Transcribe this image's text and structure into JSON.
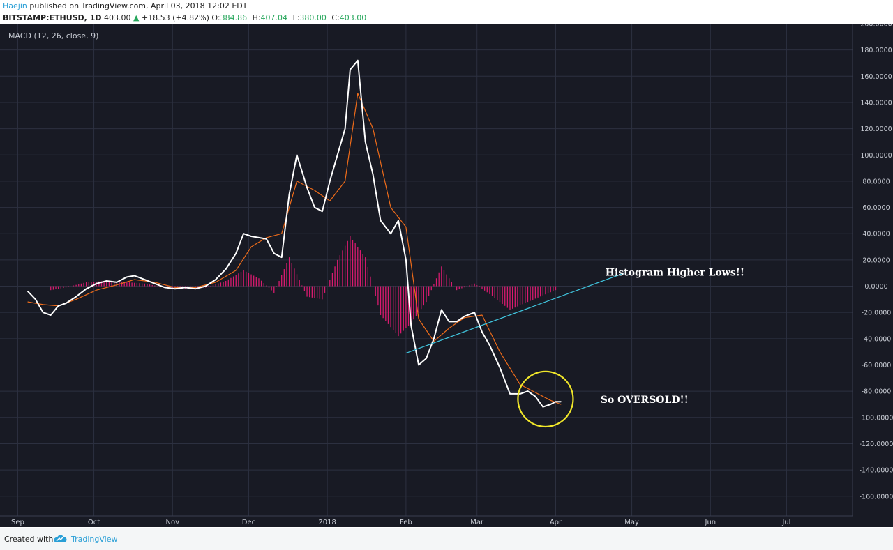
{
  "header": {
    "author": "Haejin",
    "published_text": "published on TradingView.com, April 03, 2018 12:02 EDT",
    "symbol": "BITSTAMP:ETHUSD, 1D",
    "last": "403.00",
    "change_arrow": "▲",
    "change": "+18.53 (+4.82%)",
    "ohlc": [
      {
        "label": "O:",
        "value": "384.86"
      },
      {
        "label": "H:",
        "value": "407.04"
      },
      {
        "label": "L:",
        "value": "380.00"
      },
      {
        "label": "C:",
        "value": "403.00"
      }
    ]
  },
  "footer": {
    "created_with": "Created with",
    "brand": "TradingView",
    "logo_icon": "tradingview-cloud-icon"
  },
  "colors": {
    "background": "#181a24",
    "grid": "#2c3040",
    "macd_line": "#ffffff",
    "signal_line": "#ef6c1a",
    "histogram": "#d81b6f",
    "trendline": "#40c4dd",
    "circle": "#f0e62a",
    "axis_text": "#c8ccd4"
  },
  "chart_data": {
    "type": "line",
    "title": "MACD (12, 26, close, 9)",
    "xlabel": "",
    "ylabel": "",
    "x_ticks": [
      "Sep",
      "Oct",
      "Nov",
      "Dec",
      "2018",
      "Feb",
      "Mar",
      "Apr",
      "May",
      "Jun",
      "Jul"
    ],
    "x_range": [
      "2017-08-25",
      "2018-07-27"
    ],
    "y_ticks": [
      "200.0000",
      "180.0000",
      "160.0000",
      "140.0000",
      "120.0000",
      "100.0000",
      "80.0000",
      "60.0000",
      "40.0000",
      "20.0000",
      "0.0000",
      "-20.0000",
      "-40.0000",
      "-60.0000",
      "-80.0000",
      "-100.0000",
      "-120.0000",
      "-140.0000",
      "-160.0000"
    ],
    "ylim": [
      -175,
      200
    ],
    "grid": true,
    "series": [
      {
        "name": "",
        "role": "macd",
        "x": [
          "2017-09-05",
          "2017-09-08",
          "2017-09-11",
          "2017-09-14",
          "2017-09-17",
          "2017-09-20",
          "2017-09-24",
          "2017-09-28",
          "2017-10-02",
          "2017-10-06",
          "2017-10-10",
          "2017-10-14",
          "2017-10-17",
          "2017-10-21",
          "2017-10-25",
          "2017-10-29",
          "2017-11-02",
          "2017-11-06",
          "2017-11-10",
          "2017-11-14",
          "2017-11-18",
          "2017-11-22",
          "2017-11-26",
          "2017-11-29",
          "2017-12-02",
          "2017-12-05",
          "2017-12-08",
          "2017-12-11",
          "2017-12-14",
          "2017-12-17",
          "2017-12-20",
          "2017-12-24",
          "2017-12-27",
          "2017-12-30",
          "2018-01-02",
          "2018-01-05",
          "2018-01-08",
          "2018-01-10",
          "2018-01-13",
          "2018-01-16",
          "2018-01-19",
          "2018-01-22",
          "2018-01-26",
          "2018-01-29",
          "2018-02-01",
          "2018-02-03",
          "2018-02-06",
          "2018-02-09",
          "2018-02-12",
          "2018-02-15",
          "2018-02-18",
          "2018-02-21",
          "2018-02-24",
          "2018-02-28",
          "2018-03-03",
          "2018-03-06",
          "2018-03-10",
          "2018-03-14",
          "2018-03-18",
          "2018-03-21",
          "2018-03-24",
          "2018-03-27",
          "2018-03-30",
          "2018-04-01",
          "2018-04-03"
        ],
        "values": [
          -4,
          -10,
          -20,
          -22,
          -15,
          -13,
          -8,
          -2,
          2,
          4,
          3,
          7,
          8,
          5,
          2,
          -1,
          -2,
          -1,
          -2,
          0,
          5,
          13,
          25,
          40,
          38,
          37,
          36,
          25,
          22,
          70,
          100,
          75,
          60,
          57,
          80,
          100,
          120,
          165,
          172,
          110,
          85,
          50,
          40,
          50,
          20,
          -30,
          -60,
          -55,
          -40,
          -18,
          -27,
          -27,
          -23,
          -20,
          -35,
          -45,
          -62,
          -82,
          -82,
          -80,
          -84,
          -92,
          -90,
          -88,
          -88
        ]
      },
      {
        "name": "",
        "role": "signal",
        "x": [
          "2017-09-05",
          "2017-09-11",
          "2017-09-17",
          "2017-09-24",
          "2017-10-02",
          "2017-10-10",
          "2017-10-17",
          "2017-10-25",
          "2017-11-02",
          "2017-11-10",
          "2017-11-18",
          "2017-11-26",
          "2017-12-02",
          "2017-12-08",
          "2017-12-14",
          "2017-12-20",
          "2017-12-27",
          "2018-01-02",
          "2018-01-08",
          "2018-01-13",
          "2018-01-19",
          "2018-01-26",
          "2018-02-01",
          "2018-02-06",
          "2018-02-12",
          "2018-02-18",
          "2018-02-24",
          "2018-03-03",
          "2018-03-10",
          "2018-03-18",
          "2018-03-24",
          "2018-03-30",
          "2018-04-03"
        ],
        "values": [
          -12,
          -14,
          -15,
          -10,
          -3,
          1,
          5,
          3,
          -1,
          -1,
          3,
          12,
          30,
          37,
          40,
          80,
          73,
          65,
          80,
          147,
          120,
          60,
          45,
          -25,
          -42,
          -32,
          -24,
          -22,
          -50,
          -75,
          -81,
          -87,
          -90
        ]
      },
      {
        "name": "",
        "role": "histogram",
        "x": [
          "2017-09-14",
          "2017-09-20",
          "2017-09-28",
          "2017-10-06",
          "2017-10-14",
          "2017-10-21",
          "2017-10-29",
          "2017-11-06",
          "2017-11-14",
          "2017-11-22",
          "2017-11-29",
          "2017-12-05",
          "2017-12-11",
          "2017-12-17",
          "2017-12-24",
          "2017-12-30",
          "2018-01-05",
          "2018-01-10",
          "2018-01-16",
          "2018-01-22",
          "2018-01-29",
          "2018-02-03",
          "2018-02-09",
          "2018-02-15",
          "2018-02-21",
          "2018-02-28",
          "2018-03-06",
          "2018-03-14",
          "2018-03-21",
          "2018-03-27",
          "2018-04-01"
        ],
        "values": [
          -3,
          -1,
          3,
          4,
          3,
          2,
          -1,
          -2,
          -1,
          4,
          12,
          6,
          -5,
          22,
          -8,
          -10,
          20,
          38,
          22,
          -22,
          -38,
          -28,
          -12,
          15,
          -3,
          2,
          -6,
          -18,
          -12,
          -7,
          -3
        ]
      }
    ],
    "annotations": [
      {
        "type": "text",
        "text": "Histogram Higher Lows!!"
      },
      {
        "type": "text",
        "text": "So OVERSOLD!!"
      },
      {
        "type": "trendline",
        "from": [
          "2018-02-01",
          -51
        ],
        "to": [
          "2018-04-28",
          10
        ]
      },
      {
        "type": "circle",
        "center": [
          "2018-03-28",
          -86
        ],
        "radius_y": 21
      }
    ]
  }
}
